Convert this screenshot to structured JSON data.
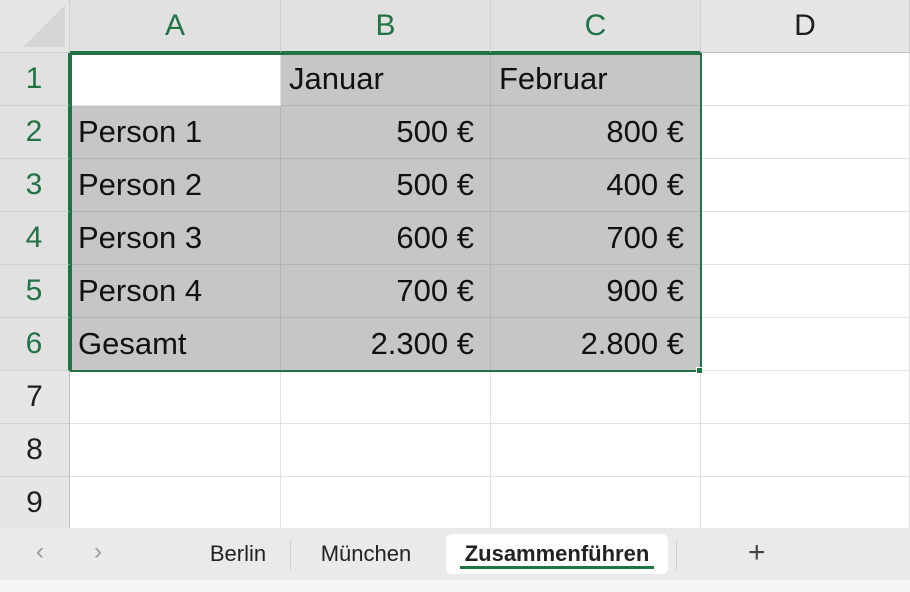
{
  "columns": [
    "A",
    "B",
    "C",
    "D"
  ],
  "rows": [
    "1",
    "2",
    "3",
    "4",
    "5",
    "6",
    "7",
    "8",
    "9"
  ],
  "cells": [
    [
      "",
      "Januar",
      "Februar"
    ],
    [
      "Person 1",
      "500 €",
      "800 €"
    ],
    [
      "Person 2",
      "500 €",
      "400 €"
    ],
    [
      "Person 3",
      "600 €",
      "700 €"
    ],
    [
      "Person 4",
      "700 €",
      "900 €"
    ],
    [
      "Gesamt",
      "2.300 €",
      "2.800 €"
    ]
  ],
  "selection": "A1:C6",
  "sheet_tabs": [
    {
      "label": "Berlin"
    },
    {
      "label": "München"
    },
    {
      "label": "Zusammenführen",
      "active": true
    }
  ],
  "nav": {
    "prev": "‹",
    "next": "›",
    "add": "+"
  },
  "colors": {
    "accent": "#217346",
    "selected_fill": "#c6c6c6"
  }
}
